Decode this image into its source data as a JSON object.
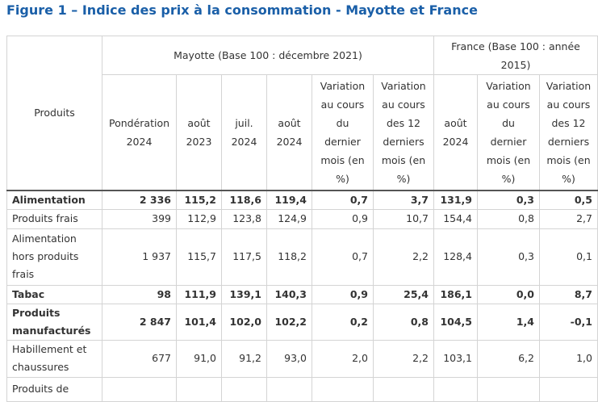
{
  "title": "Figure 1 – Indice des prix à la consommation - Mayotte et France",
  "header": {
    "products": "Produits",
    "group_mayotte": "Mayotte (Base 100 : décembre 2021)",
    "group_france": "France (Base 100 : année 2015)",
    "columns": [
      "Pondération 2024",
      "août 2023",
      "juil. 2024",
      "août 2024",
      "Variation au cours du dernier mois (en %)",
      "Variation au cours des 12 derniers mois (en %)",
      "août 2024",
      "Variation au cours du dernier mois (en %)",
      "Variation au cours des 12 derniers mois (en %)"
    ]
  },
  "rows": [
    {
      "label": "Alimentation",
      "bold": true,
      "values": [
        "2 336",
        "115,2",
        "118,6",
        "119,4",
        "0,7",
        "3,7",
        "131,9",
        "0,3",
        "0,5"
      ]
    },
    {
      "label": "Produits frais",
      "bold": false,
      "values": [
        "399",
        "112,9",
        "123,8",
        "124,9",
        "0,9",
        "10,7",
        "154,4",
        "0,8",
        "2,7"
      ]
    },
    {
      "label": "Alimentation hors produits frais",
      "bold": false,
      "values": [
        "1 937",
        "115,7",
        "117,5",
        "118,2",
        "0,7",
        "2,2",
        "128,4",
        "0,3",
        "0,1"
      ]
    },
    {
      "label": "Tabac",
      "bold": true,
      "values": [
        "98",
        "111,9",
        "139,1",
        "140,3",
        "0,9",
        "25,4",
        "186,1",
        "0,0",
        "8,7"
      ]
    },
    {
      "label": "Produits manufacturés",
      "bold": true,
      "values": [
        "2 847",
        "101,4",
        "102,0",
        "102,2",
        "0,2",
        "0,8",
        "104,5",
        "1,4",
        "-0,1"
      ]
    },
    {
      "label": "Habillement et chaussures",
      "bold": false,
      "values": [
        "677",
        "91,0",
        "91,2",
        "93,0",
        "2,0",
        "2,2",
        "103,1",
        "6,2",
        "1,0"
      ]
    },
    {
      "label": "Produits de",
      "bold": false,
      "values": [
        "",
        "",
        "",
        "",
        "",
        "",
        "",
        "",
        ""
      ]
    }
  ]
}
